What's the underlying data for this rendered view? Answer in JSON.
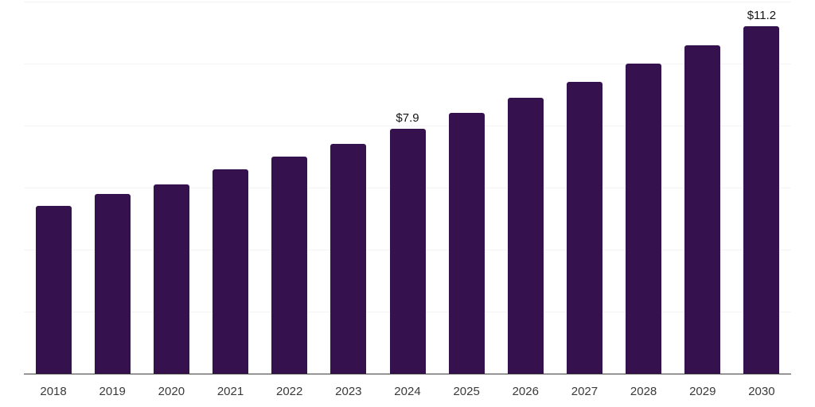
{
  "chart_data": {
    "type": "bar",
    "title": "",
    "categories": [
      "2018",
      "2019",
      "2020",
      "2021",
      "2022",
      "2023",
      "2024",
      "2025",
      "2026",
      "2027",
      "2028",
      "2029",
      "2030"
    ],
    "values": [
      5.4,
      5.8,
      6.1,
      6.6,
      7.0,
      7.4,
      7.9,
      8.4,
      8.9,
      9.4,
      10.0,
      10.6,
      11.2
    ],
    "annotations": [
      {
        "category": "2024",
        "text": "$7.9"
      },
      {
        "category": "2030",
        "text": "$11.2"
      }
    ],
    "xlabel": "",
    "ylabel": "",
    "ylim": [
      0,
      12
    ],
    "grid_step": 2,
    "grid": true,
    "legend_position": "none",
    "bar_color": "#35114D",
    "gridline_color": "#F4F4F4",
    "axis_line_color": "#3D3D3D",
    "tick_label_color": "#3A3A3A",
    "data_label_color": "#141414"
  }
}
